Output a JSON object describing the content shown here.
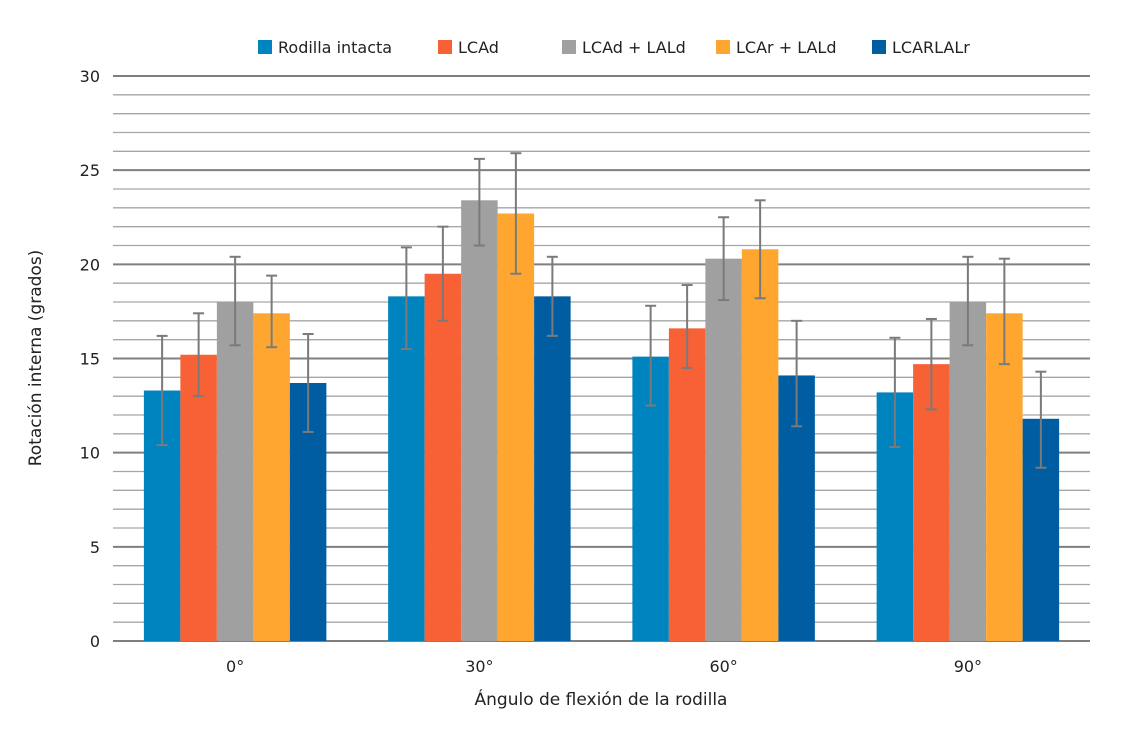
{
  "chart_data": {
    "type": "bar",
    "title": "",
    "xlabel": "Ángulo de flexión de la rodilla",
    "ylabel": "Rotación interna (grados)",
    "ylim": [
      0,
      30
    ],
    "yticks": [
      "0",
      "5",
      "10",
      "15",
      "20",
      "25",
      "30"
    ],
    "minor_grid_step": 1,
    "grid": true,
    "legend_position": "top",
    "categories": [
      "0°",
      "30°",
      "60°",
      "90°"
    ],
    "series": [
      {
        "name": "Rodilla intacta",
        "color": "#0084BF",
        "values": [
          13.3,
          18.3,
          15.1,
          13.2
        ],
        "err_low": [
          10.4,
          15.5,
          12.5,
          10.3
        ],
        "err_high": [
          16.2,
          20.9,
          17.8,
          16.1
        ]
      },
      {
        "name": "LCAd",
        "color": "#F86035",
        "values": [
          15.2,
          19.5,
          16.6,
          14.7
        ],
        "err_low": [
          13.0,
          17.0,
          14.5,
          12.3
        ],
        "err_high": [
          17.4,
          22.0,
          18.9,
          17.1
        ]
      },
      {
        "name": "LCAd + LALd",
        "color": "#A0A0A0",
        "values": [
          18.0,
          23.4,
          20.3,
          18.0
        ],
        "err_low": [
          15.7,
          21.0,
          18.1,
          15.7
        ],
        "err_high": [
          20.4,
          25.6,
          22.5,
          20.4
        ]
      },
      {
        "name": "LCAr + LALd",
        "color": "#FFA630",
        "values": [
          17.4,
          22.7,
          20.8,
          17.4
        ],
        "err_low": [
          15.6,
          19.5,
          18.2,
          14.7
        ],
        "err_high": [
          19.4,
          25.9,
          23.4,
          20.3
        ]
      },
      {
        "name": "LCARLALr",
        "color": "#005DA2",
        "values": [
          13.7,
          18.3,
          14.1,
          11.8
        ],
        "err_low": [
          11.1,
          16.2,
          11.4,
          9.2
        ],
        "err_high": [
          16.3,
          20.4,
          17.0,
          14.3
        ]
      }
    ]
  }
}
